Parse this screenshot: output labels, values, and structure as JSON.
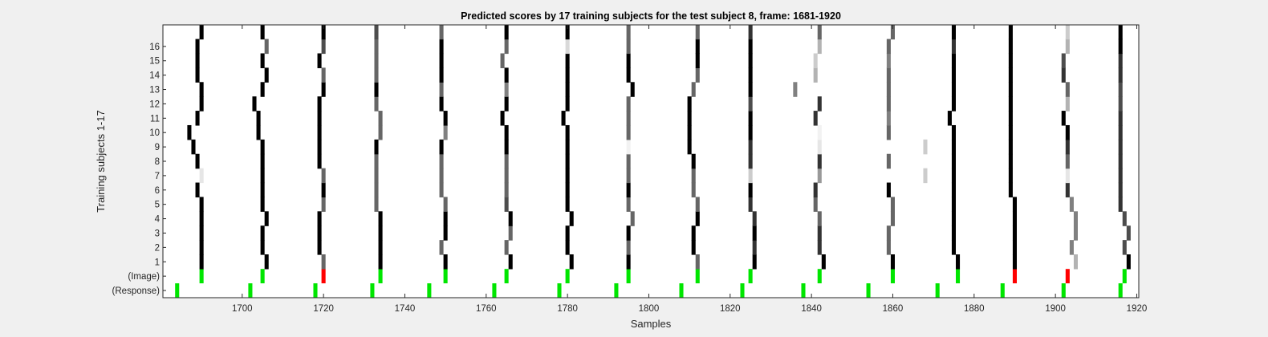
{
  "chart_data": {
    "type": "heatmap",
    "title": "Predicted scores by 17 training subjects for the test subject 8, frame: 1681-1920",
    "xlabel": "Samples",
    "ylabel": "Training subjects 1-17",
    "xlim": [
      1681,
      1920
    ],
    "x_ticks": [
      1700,
      1720,
      1740,
      1760,
      1780,
      1800,
      1820,
      1840,
      1860,
      1880,
      1900,
      1920
    ],
    "y_rows": [
      "(Response)",
      "(Image)",
      "1",
      "2",
      "3",
      "4",
      "5",
      "6",
      "7",
      "8",
      "9",
      "10",
      "11",
      "12",
      "13",
      "14",
      "15",
      "16",
      "17"
    ],
    "y_tick_labels": [
      "(Response)",
      "(Image)",
      "1",
      "2",
      "3",
      "4",
      "5",
      "6",
      "7",
      "8",
      "9",
      "10",
      "11",
      "12",
      "13",
      "14",
      "15",
      "16"
    ],
    "colors": {
      "correct": "#00e600",
      "error": "#ff0000",
      "score_high": "#000000",
      "score_low": "#ffffff",
      "background": "#f0f0f0"
    },
    "response_markers": [
      1684,
      1702,
      1718,
      1732,
      1746,
      1762,
      1778,
      1792,
      1808,
      1823,
      1838,
      1854,
      1871,
      1887,
      1902,
      1916
    ],
    "image_markers": [
      {
        "x": 1690,
        "status": "correct"
      },
      {
        "x": 1705,
        "status": "correct"
      },
      {
        "x": 1720,
        "status": "error"
      },
      {
        "x": 1734,
        "status": "correct"
      },
      {
        "x": 1750,
        "status": "correct"
      },
      {
        "x": 1765,
        "status": "correct"
      },
      {
        "x": 1780,
        "status": "correct"
      },
      {
        "x": 1795,
        "status": "correct"
      },
      {
        "x": 1812,
        "status": "correct"
      },
      {
        "x": 1825,
        "status": "correct"
      },
      {
        "x": 1842,
        "status": "correct"
      },
      {
        "x": 1860,
        "status": "correct"
      },
      {
        "x": 1876,
        "status": "correct"
      },
      {
        "x": 1890,
        "status": "error"
      },
      {
        "x": 1903,
        "status": "error"
      },
      {
        "x": 1917,
        "status": "correct"
      }
    ],
    "score_columns": [
      {
        "x": [
          1690,
          1690,
          1690,
          1690,
          1690,
          1689,
          1690,
          1689,
          1688,
          1687,
          1689,
          1690,
          1690,
          1689,
          1689,
          1689,
          1690
        ],
        "v": [
          1,
          1,
          1,
          1,
          1,
          1,
          0.1,
          1,
          1,
          1,
          1,
          1,
          1,
          1,
          1,
          1,
          1
        ]
      },
      {
        "x": [
          1706,
          1705,
          1705,
          1706,
          1705,
          1705,
          1705,
          1705,
          1705,
          1704,
          1704,
          1703,
          1705,
          1706,
          1705,
          1706,
          1705
        ],
        "v": [
          1,
          1,
          1,
          1,
          1,
          1,
          1,
          1,
          1,
          1,
          1,
          1,
          1,
          1,
          1,
          0.6,
          1
        ]
      },
      {
        "x": [
          1720,
          1719,
          1719,
          1719,
          1720,
          1720,
          1720,
          1719,
          1719,
          1719,
          1719,
          1719,
          1720,
          1720,
          1719,
          1720,
          1720
        ],
        "v": [
          0.6,
          1,
          1,
          1,
          0.6,
          1,
          0.6,
          1,
          1,
          1,
          1,
          1,
          1,
          0.6,
          1,
          0.7,
          1
        ]
      },
      {
        "x": [
          1734,
          1734,
          1734,
          1734,
          1733,
          1733,
          1733,
          1733,
          1733,
          1734,
          1734,
          1733,
          1733,
          1733,
          1733,
          1733,
          1733
        ],
        "v": [
          1,
          1,
          1,
          1,
          0.6,
          0.6,
          0.6,
          0.6,
          1,
          0.6,
          0.6,
          0.6,
          1,
          0.6,
          0.6,
          0.6,
          0.7
        ]
      },
      {
        "x": [
          1750,
          1749,
          1750,
          1750,
          1750,
          1749,
          1749,
          1749,
          1749,
          1750,
          1750,
          1749,
          1749,
          1749,
          1749,
          1749,
          1749
        ],
        "v": [
          1,
          0.6,
          1,
          1,
          0.6,
          0.6,
          0.6,
          0.6,
          1,
          0.5,
          1,
          1,
          0.6,
          1,
          1,
          1,
          0.6
        ]
      },
      {
        "x": [
          1766,
          1765,
          1766,
          1766,
          1765,
          1765,
          1765,
          1765,
          1765,
          1765,
          1764,
          1765,
          1765,
          1765,
          1764,
          1765,
          1765
        ],
        "v": [
          1,
          0.6,
          0.6,
          1,
          0.7,
          0.6,
          0.6,
          0.6,
          1,
          1,
          1,
          1,
          0.5,
          1,
          0.6,
          0.6,
          1
        ]
      },
      {
        "x": [
          1781,
          1780,
          1780,
          1781,
          1780,
          1780,
          1780,
          1780,
          1780,
          1780,
          1779,
          1780,
          1780,
          1780,
          1780,
          1780,
          1780
        ],
        "v": [
          1,
          1,
          1,
          1,
          1,
          1,
          1,
          1,
          1,
          1,
          1,
          1,
          1,
          1,
          1,
          0.15,
          1
        ]
      },
      {
        "x": [
          1795,
          1795,
          1795,
          1796,
          1795,
          1795,
          1795,
          1795,
          1795,
          1795,
          1795,
          1795,
          1796,
          1795,
          1795,
          1795,
          1795
        ],
        "v": [
          1,
          0.6,
          1,
          0.6,
          0.6,
          1,
          0.6,
          0.6,
          0.05,
          0.6,
          0.6,
          0.6,
          1,
          1,
          1,
          0.6,
          0.6
        ]
      },
      {
        "x": [
          1812,
          1811,
          1811,
          1812,
          1812,
          1811,
          1811,
          1811,
          1810,
          1810,
          1810,
          1810,
          1811,
          1812,
          1812,
          1812,
          1812
        ],
        "v": [
          0.6,
          1,
          1,
          1,
          0.6,
          0.6,
          0.6,
          1,
          1,
          1,
          1,
          1,
          0.6,
          0.6,
          1,
          1,
          0.6
        ]
      },
      {
        "x": [
          1826,
          1826,
          1826,
          1826,
          1825,
          1825,
          1825,
          1825,
          1825,
          1825,
          1825,
          1825,
          1825,
          1825,
          1825,
          1825,
          1825
        ],
        "v": [
          1,
          0.8,
          1,
          0.8,
          0.8,
          1,
          0.2,
          0.8,
          0.8,
          1,
          1,
          0.7,
          1,
          1,
          1,
          1,
          0.8
        ]
      },
      {
        "x": [
          1843,
          1842,
          1842,
          1842,
          1841,
          1841,
          1842,
          1842,
          1842,
          1842,
          1841,
          1842,
          1836,
          1841,
          1841,
          1842,
          1842
        ],
        "v": [
          1,
          0.8,
          0.8,
          0.6,
          0.6,
          0.8,
          0.4,
          0.8,
          0.1,
          0.05,
          0.8,
          0.8,
          0.5,
          0.3,
          0.2,
          0.3,
          0.6
        ]
      },
      {
        "x": [
          1860,
          1859,
          1859,
          1860,
          1860,
          1859,
          1868,
          1859,
          1868,
          1859,
          1859,
          1859,
          1859,
          1859,
          1859,
          1859,
          1860
        ],
        "v": [
          1,
          0.6,
          0.6,
          0.6,
          0.6,
          1,
          0.2,
          0.6,
          0.2,
          0.6,
          0.5,
          0.6,
          0.6,
          0.6,
          0.5,
          0.6,
          0.6
        ]
      },
      {
        "x": [
          1876,
          1875,
          1875,
          1875,
          1875,
          1875,
          1875,
          1875,
          1875,
          1875,
          1874,
          1875,
          1875,
          1875,
          1875,
          1875,
          1875
        ],
        "v": [
          1,
          1,
          1,
          1,
          1,
          1,
          1,
          1,
          1,
          1,
          1,
          1,
          1,
          1,
          1,
          0.8,
          1
        ]
      },
      {
        "x": [
          1890,
          1890,
          1890,
          1890,
          1890,
          1889,
          1889,
          1889,
          1889,
          1889,
          1889,
          1889,
          1889,
          1889,
          1889,
          1889,
          1889
        ],
        "v": [
          1,
          1,
          1,
          1,
          1,
          1,
          1,
          1,
          1,
          1,
          1,
          1,
          1,
          1,
          1,
          1,
          1
        ]
      },
      {
        "x": [
          1905,
          1904,
          1905,
          1905,
          1904,
          1903,
          1903,
          1903,
          1903,
          1903,
          1902,
          1903,
          1903,
          1902,
          1902,
          1903,
          1903
        ],
        "v": [
          0.3,
          0.5,
          0.5,
          0.5,
          0.5,
          0.8,
          0.1,
          0.6,
          0.8,
          1,
          1,
          0.3,
          0.6,
          0.8,
          0.7,
          0.3,
          0.2
        ]
      },
      {
        "x": [
          1918,
          1917,
          1918,
          1917,
          1916,
          1916,
          1916,
          1916,
          1916,
          1916,
          1916,
          1916,
          1916,
          1916,
          1916,
          1916,
          1916
        ],
        "v": [
          1,
          0.7,
          0.7,
          0.7,
          0.8,
          0.8,
          0.8,
          0.8,
          0.8,
          0.8,
          0.8,
          0.7,
          0.7,
          0.8,
          0.8,
          1,
          1
        ]
      }
    ]
  }
}
